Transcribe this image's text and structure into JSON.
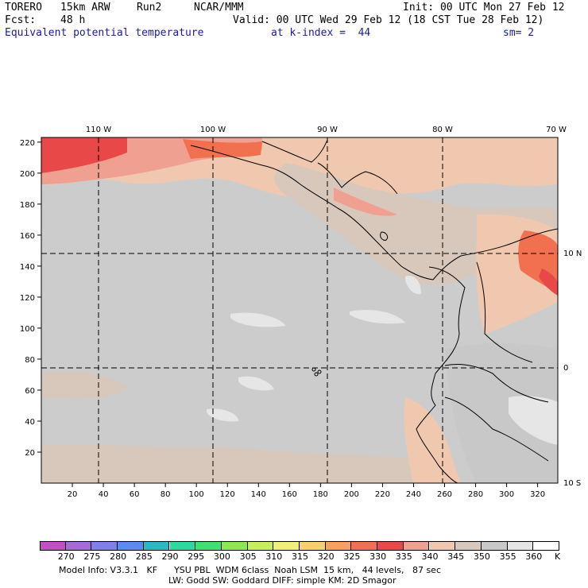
{
  "header": {
    "model": "TORERO",
    "resolution": "15km ARW",
    "run": "Run2",
    "org": "NCAR/MMM",
    "init": "Init: 00 UTC Mon 27 Feb 12",
    "fcst_label": "Fcst:",
    "fcst_value": "48 h",
    "valid": "Valid: 00 UTC Wed 29 Feb 12 (18 CST Tue 28 Feb 12)",
    "field": "Equivalent potential temperature",
    "level": "at k-index =  44",
    "smoothing": "sm= 2"
  },
  "axes": {
    "top_labels": [
      "110 W",
      "100 W",
      "90 W",
      "80 W",
      "70 W"
    ],
    "right_labels": [
      "10 N",
      "0",
      "10 S"
    ],
    "left_ticks": [
      "20",
      "40",
      "60",
      "80",
      "100",
      "120",
      "140",
      "160",
      "180",
      "200",
      "220"
    ],
    "bottom_ticks": [
      "20",
      "40",
      "60",
      "80",
      "100",
      "120",
      "140",
      "160",
      "180",
      "200",
      "220",
      "240",
      "260",
      "280",
      "300",
      "320"
    ]
  },
  "colorbar": {
    "values": [
      "270",
      "275",
      "280",
      "285",
      "290",
      "295",
      "300",
      "305",
      "310",
      "315",
      "320",
      "325",
      "330",
      "335",
      "340",
      "345",
      "350",
      "355",
      "360"
    ],
    "unit": "K",
    "colors": [
      "#c34fc8",
      "#a66bd6",
      "#8080e6",
      "#5a8cf0",
      "#2ab8c8",
      "#2ad8a0",
      "#3ee070",
      "#8ce850",
      "#c8f05a",
      "#f0f078",
      "#f8d070",
      "#f8a060",
      "#f07050",
      "#e84848",
      "#f0a090",
      "#f0c8b0",
      "#d8c8bc",
      "#c8c8c8",
      "#e6e6e6",
      "#ffffff"
    ]
  },
  "footer": {
    "line1": "Model Info: V3.3.1   KF      YSU PBL  WDM 6class  Noah LSM  15 km,   44 levels,   87 sec",
    "line2": "LW: Godd SW: Goddard DIFF: simple KM: 2D Smagor"
  }
}
